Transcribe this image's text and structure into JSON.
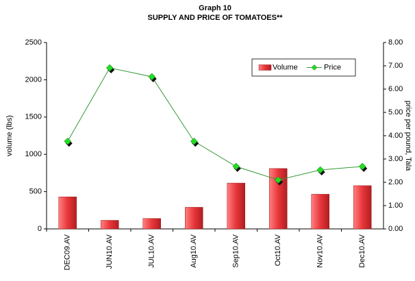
{
  "chart_data": {
    "type": "bar",
    "title": "Graph 10",
    "subtitle": "SUPPLY AND PRICE OF TOMATOES**",
    "y_label": "volume (lbs)",
    "y2_label": "price per pound, Tala",
    "categories": [
      "DEC09.AV",
      "JUN10.AV",
      "JUL10.AV",
      "Aug10.AV",
      "Sep10.AV",
      "Oct10.AV",
      "Nov10.AV",
      "Dec10.AV"
    ],
    "series": [
      {
        "name": "Volume",
        "type": "bar",
        "color": "#e8363a",
        "values": [
          430,
          115,
          140,
          290,
          615,
          810,
          465,
          580
        ]
      },
      {
        "name": "Price",
        "type": "line",
        "axis": "y2",
        "color": "#339933",
        "marker_color": "#22dd22",
        "values": [
          3.76,
          6.91,
          6.53,
          3.76,
          2.68,
          2.1,
          2.53,
          2.68
        ]
      }
    ],
    "ylim": [
      0,
      2500
    ],
    "yticks": [
      0,
      500,
      1000,
      1500,
      2000,
      2500
    ],
    "y2lim": [
      0,
      8
    ],
    "y2ticks": [
      {
        "value": 0,
        "label": "0.00"
      },
      {
        "value": 1,
        "label": "1.00"
      },
      {
        "value": 2,
        "label": "2.00"
      },
      {
        "value": 3,
        "label": "3.00"
      },
      {
        "value": 4,
        "label": "4.00"
      },
      {
        "value": 5,
        "label": "5.00"
      },
      {
        "value": 6,
        "label": "6.00"
      },
      {
        "value": 7,
        "label": "7.00"
      },
      {
        "value": 8,
        "label": "8.00"
      }
    ],
    "legend": "upper right"
  }
}
